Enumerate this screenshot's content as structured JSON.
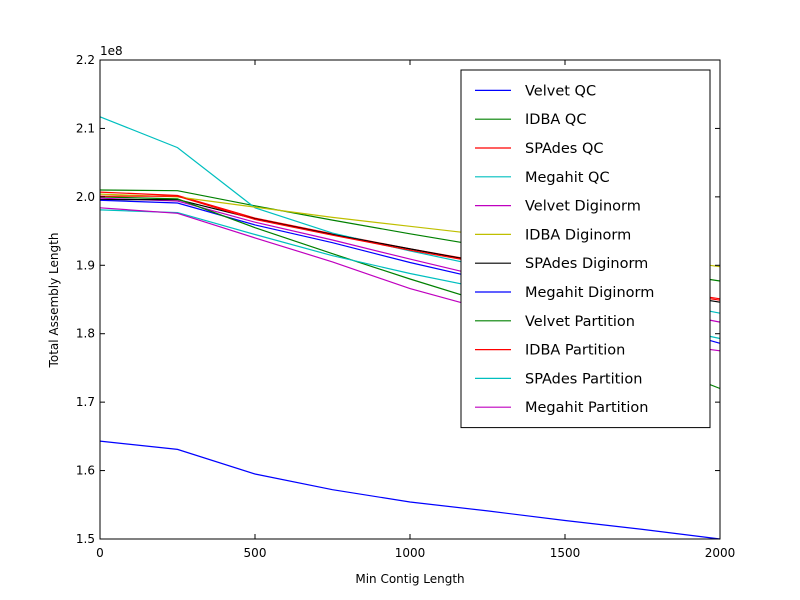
{
  "chart_data": {
    "type": "line",
    "title": "",
    "xlabel": "Min Contig Length",
    "ylabel": "Total Assembly Length",
    "y_multiplier_label": "1e8",
    "xlim": [
      0,
      2000
    ],
    "ylim": [
      1.5,
      2.2
    ],
    "x_ticks": [
      0,
      500,
      1000,
      1500,
      2000
    ],
    "y_ticks": [
      1.5,
      1.6,
      1.7,
      1.8,
      1.9,
      2.0,
      2.1,
      2.2
    ],
    "x_tick_labels": [
      "0",
      "500",
      "1000",
      "1500",
      "2000"
    ],
    "y_tick_labels": [
      "1.5",
      "1.6",
      "1.7",
      "1.8",
      "1.9",
      "2.0",
      "2.1",
      "2.2"
    ],
    "grid": false,
    "legend_position": "top-right",
    "x": [
      0,
      250,
      500,
      750,
      1000,
      1250,
      1500,
      1750,
      2000
    ],
    "series": [
      {
        "name": "Velvet QC",
        "color": "#0000ff",
        "values": [
          1.643,
          1.631,
          1.595,
          1.572,
          1.554,
          1.541,
          1.527,
          1.514,
          1.5
        ]
      },
      {
        "name": "IDBA QC",
        "color": "#008000",
        "values": [
          2.01,
          2.009,
          1.987,
          1.966,
          1.946,
          1.927,
          1.91,
          1.894,
          1.877
        ]
      },
      {
        "name": "SPAdes QC",
        "color": "#ff0000",
        "values": [
          2.007,
          2.002,
          1.969,
          1.946,
          1.924,
          1.904,
          1.885,
          1.868,
          1.851
        ]
      },
      {
        "name": "Megahit QC",
        "color": "#00bfbf",
        "values": [
          2.117,
          2.072,
          1.984,
          1.947,
          1.921,
          1.897,
          1.874,
          1.852,
          1.83
        ]
      },
      {
        "name": "Velvet Diginorm",
        "color": "#bf00bf",
        "values": [
          1.998,
          1.994,
          1.963,
          1.937,
          1.909,
          1.882,
          1.86,
          1.839,
          1.817
        ]
      },
      {
        "name": "IDBA Diginorm",
        "color": "#bfbf00",
        "values": [
          2.004,
          2.0,
          1.985,
          1.97,
          1.957,
          1.944,
          1.928,
          1.913,
          1.898
        ]
      },
      {
        "name": "SPAdes Diginorm",
        "color": "#000000",
        "values": [
          1.996,
          1.996,
          1.968,
          1.945,
          1.924,
          1.903,
          1.883,
          1.864,
          1.846
        ]
      },
      {
        "name": "Megahit Diginorm",
        "color": "#0000ff",
        "values": [
          1.995,
          1.991,
          1.959,
          1.933,
          1.904,
          1.878,
          1.85,
          1.818,
          1.786
        ]
      },
      {
        "name": "Velvet Partition",
        "color": "#008000",
        "values": [
          2.0,
          1.997,
          1.955,
          1.917,
          1.88,
          1.845,
          1.806,
          1.764,
          1.72
        ]
      },
      {
        "name": "IDBA Partition",
        "color": "#ff0000",
        "values": [
          2.001,
          2.001,
          1.967,
          1.944,
          1.922,
          1.902,
          1.883,
          1.866,
          1.849
        ]
      },
      {
        "name": "SPAdes Partition",
        "color": "#00bfbf",
        "values": [
          1.981,
          1.977,
          1.945,
          1.914,
          1.888,
          1.865,
          1.841,
          1.817,
          1.793
        ]
      },
      {
        "name": "Megahit Partition",
        "color": "#bf00bf",
        "values": [
          1.984,
          1.976,
          1.94,
          1.905,
          1.866,
          1.835,
          1.807,
          1.79,
          1.775
        ]
      }
    ]
  }
}
